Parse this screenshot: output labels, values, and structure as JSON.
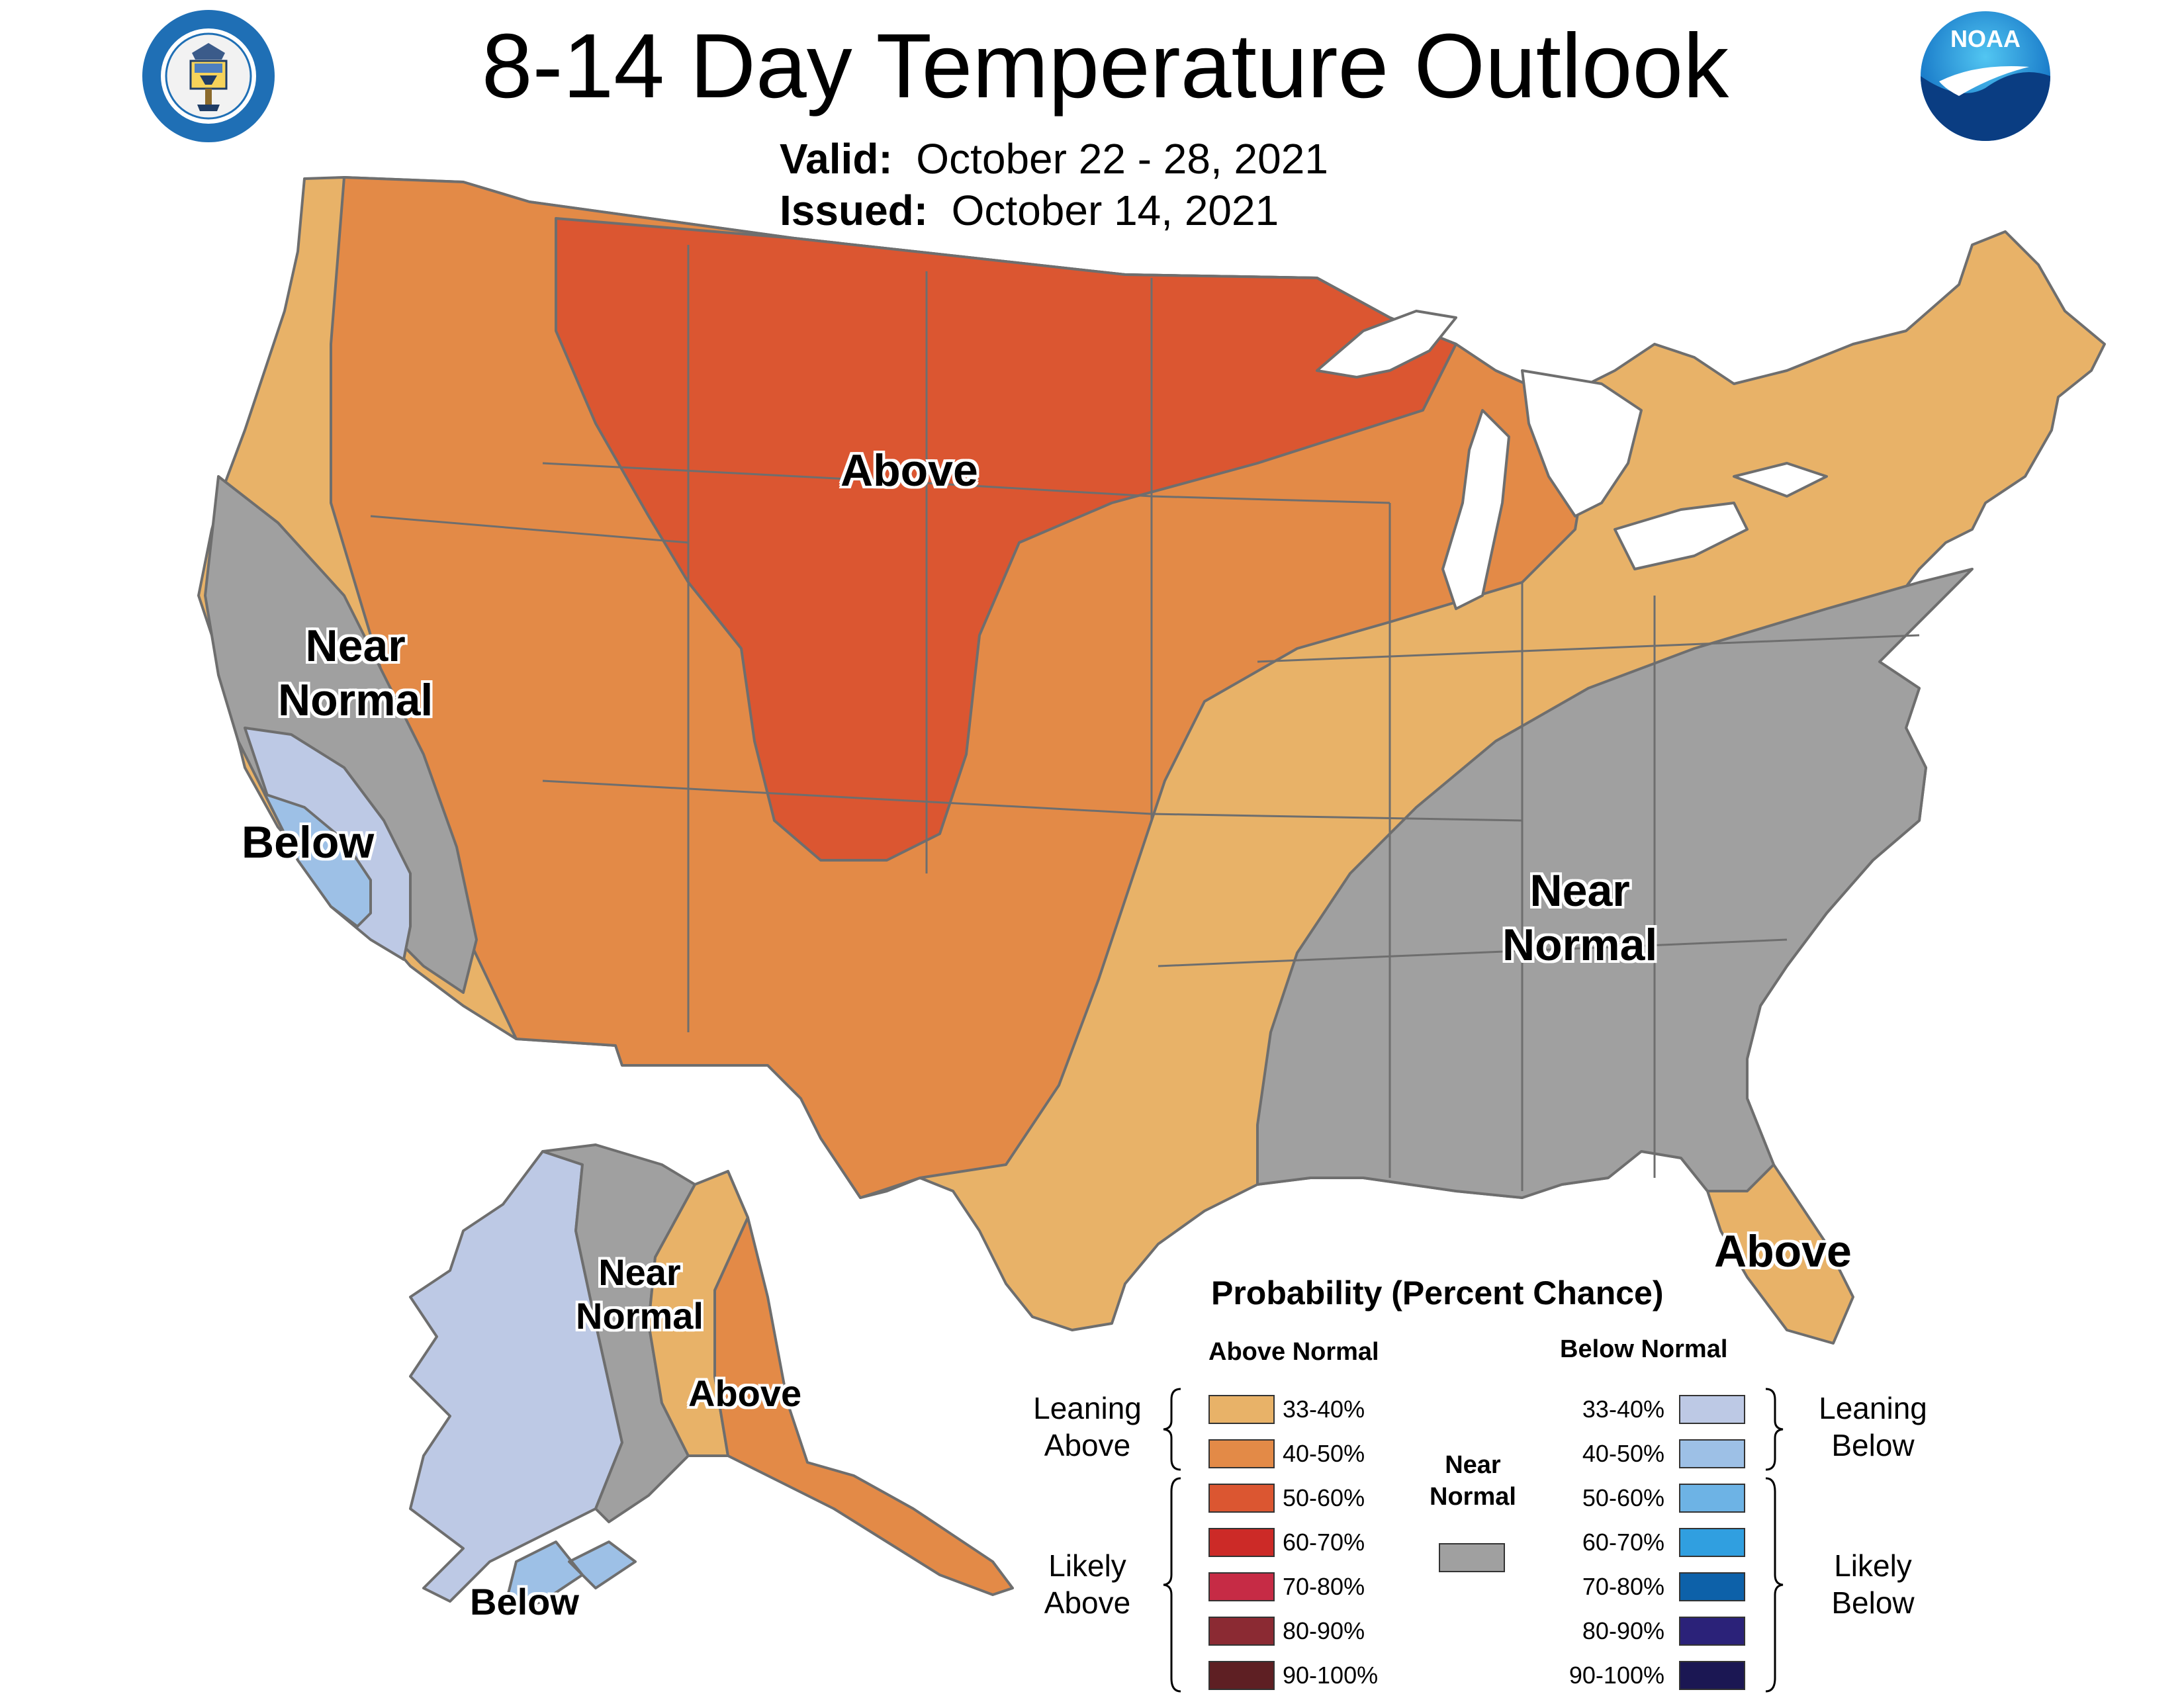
{
  "header": {
    "title": "8-14 Day Temperature Outlook",
    "valid_label": "Valid:",
    "valid_value": "October 22 - 28, 2021",
    "issued_label": "Issued:",
    "issued_value": "October 14, 2021",
    "seal_icon": "department-of-commerce-seal",
    "seal_text": "DEPARTMENT OF COMMERCE · UNITED STATES OF AMERICA",
    "noaa_icon": "noaa-logo",
    "noaa_text": "NOAA"
  },
  "colors": {
    "above_33_40": "#E8B268",
    "above_40_50": "#E38A47",
    "above_50_60": "#DB5631",
    "above_60_70": "#CC2A27",
    "above_70_80": "#C62B45",
    "above_80_90": "#8B2A33",
    "above_90_100": "#5E1F23",
    "near_normal": "#A0A0A0",
    "below_33_40": "#BDC9E5",
    "below_40_50": "#9DC0E6",
    "below_50_60": "#6DB3E5",
    "below_60_70": "#309FE0",
    "below_70_80": "#0D61A9",
    "below_80_90": "#2B2279",
    "below_90_100": "#1B1753",
    "outline": "#6E6E6E"
  },
  "map_labels": {
    "conus_above": "Above",
    "conus_west_near_line1": "Near",
    "conus_west_near_line2": "Normal",
    "conus_below": "Below",
    "conus_se_near_line1": "Near",
    "conus_se_near_line2": "Normal",
    "florida_above": "Above",
    "alaska_near_line1": "Near",
    "alaska_near_line2": "Normal",
    "alaska_above": "Above",
    "alaska_below": "Below"
  },
  "legend": {
    "title": "Probability (Percent Chance)",
    "above_header": "Above Normal",
    "below_header": "Below Normal",
    "above_ranges": [
      "33-40%",
      "40-50%",
      "50-60%",
      "60-70%",
      "70-80%",
      "80-90%",
      "90-100%"
    ],
    "below_ranges": [
      "33-40%",
      "40-50%",
      "50-60%",
      "60-70%",
      "70-80%",
      "80-90%",
      "90-100%"
    ],
    "leaning_above_line1": "Leaning",
    "leaning_above_line2": "Above",
    "likely_above_line1": "Likely",
    "likely_above_line2": "Above",
    "leaning_below_line1": "Leaning",
    "leaning_below_line2": "Below",
    "likely_below_line1": "Likely",
    "likely_below_line2": "Below",
    "near_normal_line1": "Near",
    "near_normal_line2": "Normal"
  }
}
